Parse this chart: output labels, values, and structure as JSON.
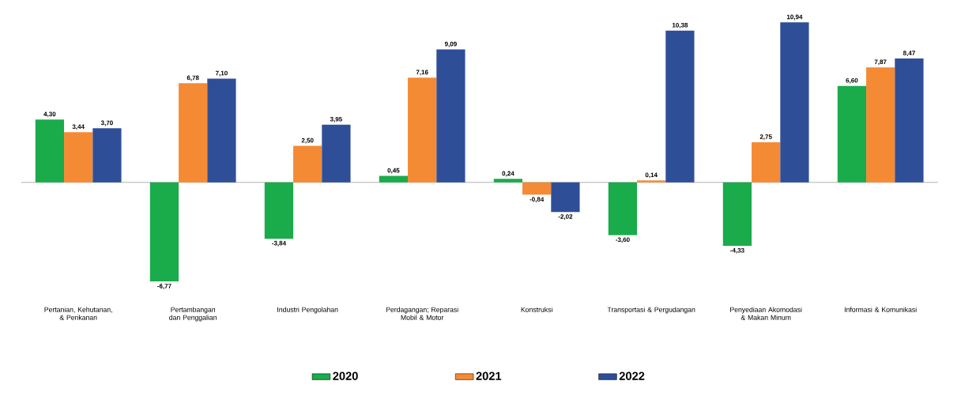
{
  "chart_data": {
    "type": "bar",
    "categories": [
      "Pertanian, Kehutanan, & Perikanan",
      "Pertambangan dan Penggalian",
      "Industri Pengolahan",
      "Perdagangan; Reparasi Mobil & Motor",
      "Konstruksi",
      "Transportasi & Pergudangan",
      "Penyediaan Akomodasi & Makan Minum",
      "Informasi & Komunikasi"
    ],
    "series": [
      {
        "name": "2020",
        "color": "#1aab4b",
        "values": [
          4.3,
          -6.77,
          -3.84,
          0.45,
          0.24,
          -3.6,
          -4.33,
          6.6
        ],
        "value_labels": [
          "4,30",
          "-6,77",
          "-3,84",
          "0,45",
          "0,24",
          "-3,60",
          "-4,33",
          "6,60"
        ]
      },
      {
        "name": "2021",
        "color": "#f58a35",
        "values": [
          3.44,
          6.78,
          2.5,
          7.16,
          -0.84,
          0.14,
          2.75,
          7.87
        ],
        "value_labels": [
          "3,44",
          "6,78",
          "2,50",
          "7,16",
          "-0,84",
          "0,14",
          "2,75",
          "7,87"
        ]
      },
      {
        "name": "2022",
        "color": "#2e4f98",
        "values": [
          3.7,
          7.1,
          3.95,
          9.09,
          -2.02,
          10.38,
          10.94,
          8.47
        ],
        "value_labels": [
          "3,70",
          "7,10",
          "3,95",
          "9,09",
          "-2,02",
          "10,38",
          "10,94",
          "8,47"
        ]
      }
    ],
    "legend": "bottom"
  }
}
